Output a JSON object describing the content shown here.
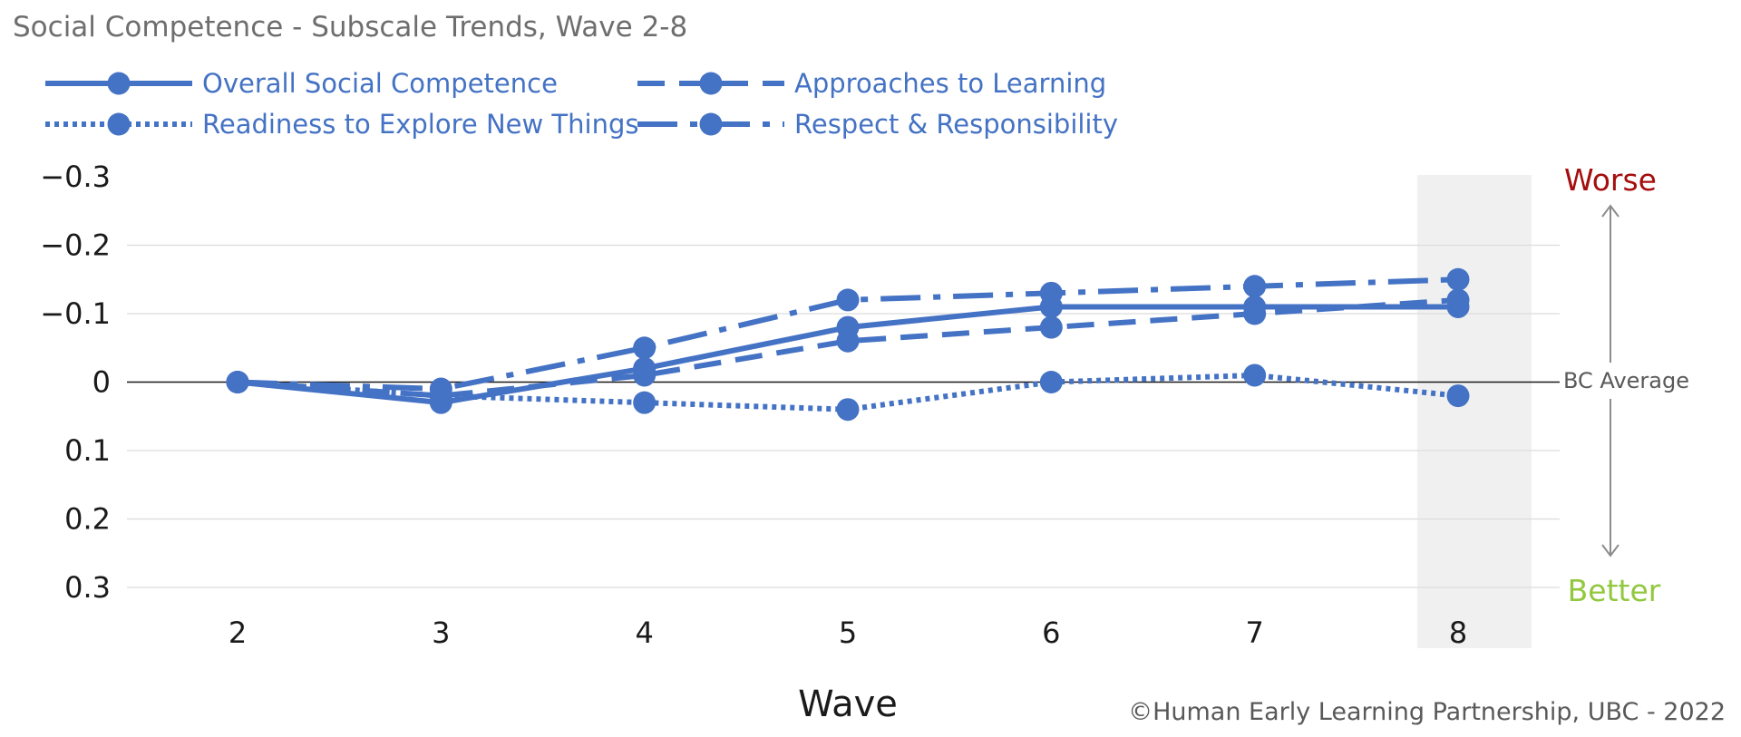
{
  "chart_data": {
    "type": "line",
    "title": "Social Competence - Subscale Trends, Wave 2-8",
    "xlabel": "Wave",
    "ylabel": "",
    "x": [
      2,
      3,
      4,
      5,
      6,
      7,
      8
    ],
    "xticks": [
      "2",
      "3",
      "4",
      "5",
      "6",
      "7",
      "8"
    ],
    "yticks": [
      "−0.3",
      "−0.2",
      "−0.1",
      "0",
      "0.1",
      "0.2",
      "0.3"
    ],
    "ylim": [
      -0.3,
      0.3
    ],
    "y_axis_inverted": true,
    "grid": true,
    "legend_position": "top-left",
    "highlighted_x": 8,
    "series": [
      {
        "name": "Overall Social Competence",
        "style": "solid",
        "values": [
          0,
          0.03,
          -0.02,
          -0.08,
          -0.11,
          -0.11,
          -0.11
        ]
      },
      {
        "name": "Approaches to Learning",
        "style": "dashed",
        "values": [
          0,
          0.02,
          -0.01,
          -0.06,
          -0.08,
          -0.1,
          -0.12
        ]
      },
      {
        "name": "Readiness to Explore New Things",
        "style": "dotted",
        "values": [
          0,
          0.02,
          0.03,
          0.04,
          0,
          -0.01,
          0.02
        ]
      },
      {
        "name": "Respect & Responsibility",
        "style": "dashdot",
        "values": [
          0,
          0.01,
          -0.05,
          -0.12,
          -0.13,
          -0.14,
          -0.15
        ]
      }
    ],
    "annotations": {
      "reference": "BC Average",
      "worse": "Worse",
      "better": "Better"
    },
    "colors": {
      "series": "#4472c4",
      "worse": "#a50e0e",
      "better": "#92c83e",
      "highlight": "#f0f0f0"
    }
  },
  "footer": {
    "credit": "©Human Early Learning Partnership, UBC - 2022"
  }
}
